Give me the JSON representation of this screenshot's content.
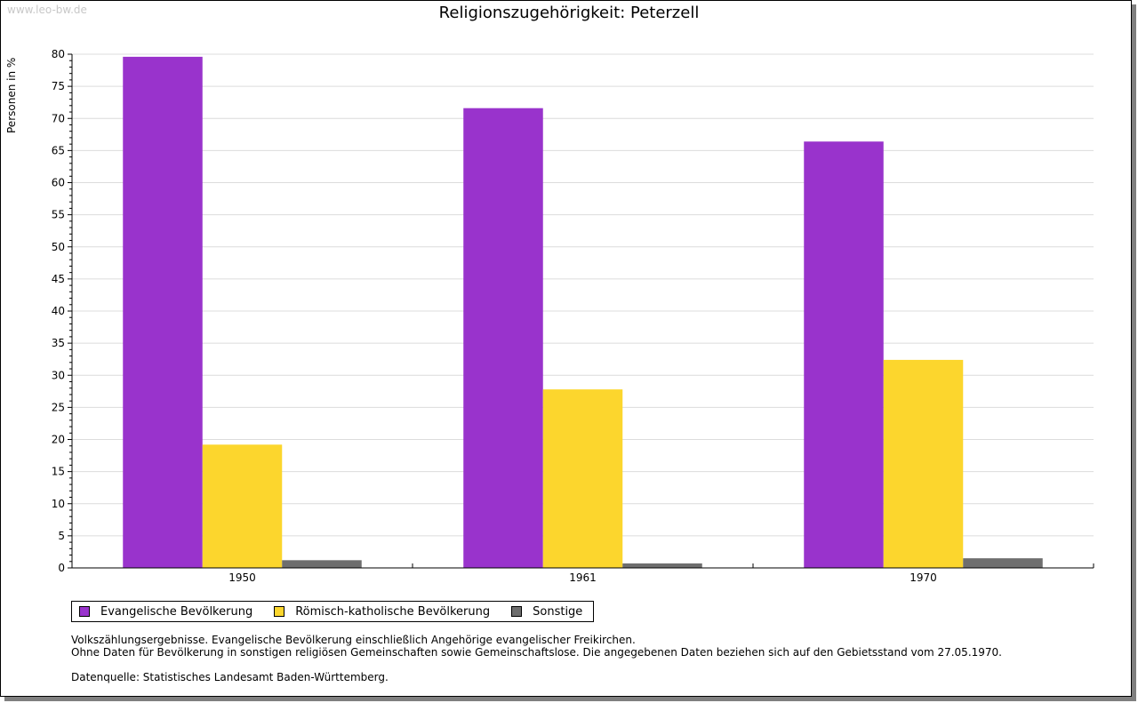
{
  "watermark": "www.leo-bw.de",
  "chart_data": {
    "type": "bar",
    "title": "Religionszugehörigkeit: Peterzell",
    "ylabel": "Personen in %",
    "xlabel": "",
    "ylim": [
      0,
      80
    ],
    "yticks": [
      0,
      5,
      10,
      15,
      20,
      25,
      30,
      35,
      40,
      45,
      50,
      55,
      60,
      65,
      70,
      75,
      80
    ],
    "grid": true,
    "categories": [
      "1950",
      "1961",
      "1970"
    ],
    "series": [
      {
        "name": "Evangelische Bevölkerung",
        "color": "#9933cc",
        "values": [
          79.6,
          71.6,
          66.4
        ]
      },
      {
        "name": "Römisch-katholische Bevölkerung",
        "color": "#fcd62d",
        "values": [
          19.2,
          27.8,
          32.4
        ]
      },
      {
        "name": "Sonstige",
        "color": "#6e6e6e",
        "values": [
          1.2,
          0.7,
          1.5
        ]
      }
    ],
    "legend": "bottom-left"
  },
  "notes": [
    "Volkszählungsergebnisse. Evangelische Bevölkerung einschließlich Angehörige evangelischer Freikirchen.",
    "Ohne Daten für Bevölkerung in sonstigen religiösen Gemeinschaften sowie Gemeinschaftslose. Die angegebenen Daten beziehen sich auf den Gebietsstand vom 27.05.1970."
  ],
  "source": "Datenquelle: Statistisches Landesamt Baden-Württemberg."
}
